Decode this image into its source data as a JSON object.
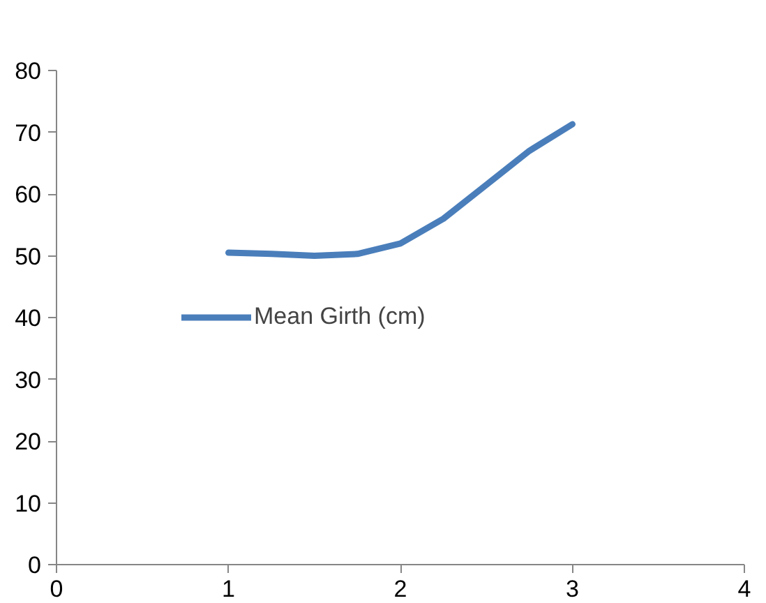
{
  "chart_data": {
    "type": "line",
    "x": [
      1,
      1.25,
      1.5,
      1.75,
      2,
      2.25,
      2.5,
      2.75,
      3
    ],
    "series": [
      {
        "name": "Mean Girth (cm)",
        "color": "#4a7ebb",
        "values": [
          50.5,
          50.3,
          50,
          50.3,
          52,
          56,
          61.5,
          67,
          71.3
        ]
      }
    ],
    "xlim": [
      0,
      4
    ],
    "xticks": [
      0,
      1,
      2,
      3,
      4
    ],
    "ylim": [
      0,
      80
    ],
    "yticks": [
      0,
      10,
      20,
      30,
      40,
      50,
      60,
      70,
      80
    ],
    "grid": false,
    "legend": "left",
    "marker": "none",
    "line_style": "solid"
  }
}
